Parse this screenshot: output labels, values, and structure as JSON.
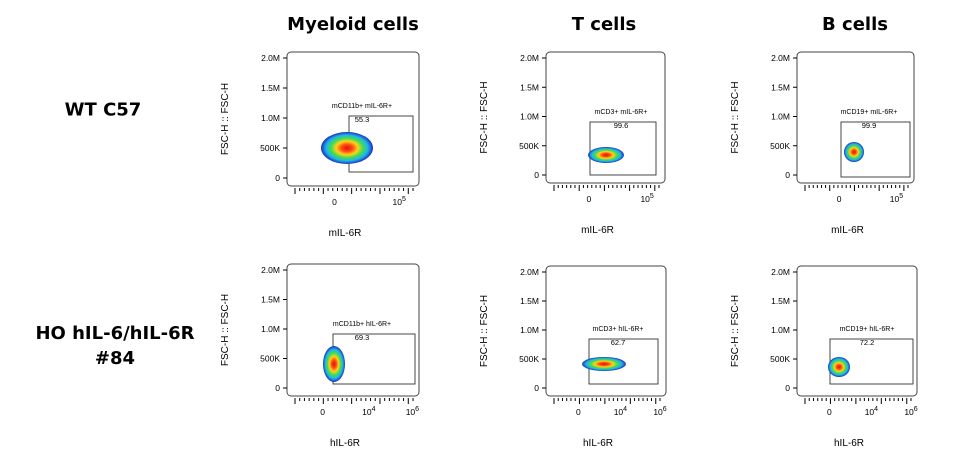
{
  "columns": [
    "Myeloid cells",
    "T cells",
    "B cells"
  ],
  "rows": [
    "WT C57",
    "HO hIL-6/hIL-6R\n#84"
  ],
  "chart_data": [
    {
      "type": "scatter",
      "row": 0,
      "col": 0,
      "ylabel": "FSC-H :: FSC-H",
      "xlabel": "mIL-6R",
      "yticks": [
        "0",
        "500K",
        "1.0M",
        "1.5M",
        "2.0M"
      ],
      "xticks": [
        "0",
        "10^5"
      ],
      "gate_label": "mCD11b+ mIL-6R+",
      "gate_value": "55.3",
      "ylim": [
        0,
        2000000
      ]
    },
    {
      "type": "scatter",
      "row": 0,
      "col": 1,
      "ylabel": "FSC-H :: FSC-H",
      "xlabel": "mIL-6R",
      "yticks": [
        "0",
        "500K",
        "1.0M",
        "1.5M",
        "2.0M"
      ],
      "xticks": [
        "0",
        "10^5"
      ],
      "gate_label": "mCD3+ mIL-6R+",
      "gate_value": "99.6",
      "ylim": [
        0,
        2000000
      ]
    },
    {
      "type": "scatter",
      "row": 0,
      "col": 2,
      "ylabel": "FSC-H :: FSC-H",
      "xlabel": "mIL-6R",
      "yticks": [
        "0",
        "500K",
        "1.0M",
        "1.5M",
        "2.0M"
      ],
      "xticks": [
        "0",
        "10^5"
      ],
      "gate_label": "mCD19+ mIL-6R+",
      "gate_value": "99.9",
      "ylim": [
        0,
        2000000
      ]
    },
    {
      "type": "scatter",
      "row": 1,
      "col": 0,
      "ylabel": "FSC-H :: FSC-H",
      "xlabel": "hIL-6R",
      "yticks": [
        "0",
        "500K",
        "1.0M",
        "1.5M",
        "2.0M"
      ],
      "xticks": [
        "0",
        "10^4",
        "10^6"
      ],
      "gate_label": "mCD11b+ hIL-6R+",
      "gate_value": "69.3",
      "ylim": [
        0,
        2000000
      ]
    },
    {
      "type": "scatter",
      "row": 1,
      "col": 1,
      "ylabel": "FSC-H :: FSC-H",
      "xlabel": "hIL-6R",
      "yticks": [
        "0",
        "500K",
        "1.0M",
        "1.5M",
        "2.0M"
      ],
      "xticks": [
        "0",
        "10^4",
        "10^6"
      ],
      "gate_label": "mCD3+ hIL-6R+",
      "gate_value": "62.7",
      "ylim": [
        0,
        2000000
      ]
    },
    {
      "type": "scatter",
      "row": 1,
      "col": 2,
      "ylabel": "FSC-H :: FSC-H",
      "xlabel": "hIL-6R",
      "yticks": [
        "0",
        "500K",
        "1.0M",
        "1.5M",
        "2.0M"
      ],
      "xticks": [
        "0",
        "10^4",
        "10^6"
      ],
      "gate_label": "mCD19+ hIL-6R+",
      "gate_value": "72.2",
      "ylim": [
        0,
        2000000
      ]
    }
  ]
}
